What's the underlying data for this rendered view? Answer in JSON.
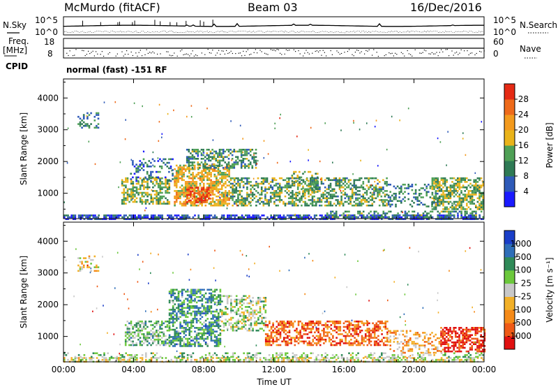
{
  "header": {
    "site": "McMurdo (fitACF)",
    "beam": "Beam 03",
    "date": "16/Dec/2016"
  },
  "strip_labels": {
    "nsky": "N.Sky",
    "nsearch": "N.Search",
    "freq_line1": "Freq.",
    "freq_line2": "[MHz]",
    "nave": "Nave",
    "cpid": "CPID",
    "cpid_value": "normal (fast) -151 RF",
    "noise_left_ticks": [
      "10^5",
      "10^0"
    ],
    "noise_right_ticks": [
      "10^5",
      "10^0"
    ],
    "freq_ticks": [
      "18",
      "8"
    ],
    "nave_ticks": [
      "60",
      "0"
    ]
  },
  "colors": {
    "power": [
      "#1a1aff",
      "#2e5ab8",
      "#2f7a55",
      "#4fa056",
      "#e9b31a",
      "#f39a1d",
      "#ee6a1a",
      "#e52a14"
    ],
    "velocity": [
      "#e01010",
      "#ef5a16",
      "#f58a18",
      "#f2b028",
      "#c8c8c8",
      "#6cc83c",
      "#2f8a58",
      "#2f6eb8",
      "#1a3ec8"
    ]
  },
  "chart_data": [
    {
      "type": "heatmap",
      "name": "power-panel",
      "xlabel": "",
      "ylabel": "Slant Range [km]",
      "xlim": [
        "00:00",
        "24:00"
      ],
      "ylim": [
        200,
        4600
      ],
      "y_ticks": [
        "1000",
        "2000",
        "3000",
        "4000"
      ],
      "x_ticks": [
        "00:00",
        "04:00",
        "08:00",
        "12:00",
        "16:00",
        "20:00",
        "00:00"
      ],
      "colorbar": {
        "label": "Power [dB]",
        "ticks": [
          "4",
          "8",
          "12",
          "16",
          "20",
          "24",
          "28"
        ],
        "range": [
          0,
          32
        ]
      },
      "regions": [
        {
          "t0": 0.0,
          "t1": 24.0,
          "r0": 200,
          "r1": 330,
          "density": 0.9,
          "level": 0.15
        },
        {
          "t0": 0.8,
          "t1": 2.0,
          "r0": 3050,
          "r1": 3550,
          "density": 0.5,
          "level": 0.3
        },
        {
          "t0": 3.3,
          "t1": 6.0,
          "r0": 650,
          "r1": 1500,
          "density": 0.75,
          "level": 0.45
        },
        {
          "t0": 3.8,
          "t1": 6.2,
          "r0": 1400,
          "r1": 2100,
          "density": 0.35,
          "level": 0.25
        },
        {
          "t0": 6.3,
          "t1": 9.5,
          "r0": 600,
          "r1": 1900,
          "density": 0.85,
          "level": 0.6
        },
        {
          "t0": 7.0,
          "t1": 8.4,
          "r0": 700,
          "r1": 1200,
          "density": 0.9,
          "level": 0.85
        },
        {
          "t0": 7.0,
          "t1": 11.0,
          "r0": 1800,
          "r1": 2400,
          "density": 0.7,
          "level": 0.35
        },
        {
          "t0": 9.5,
          "t1": 18.5,
          "r0": 600,
          "r1": 1500,
          "density": 0.65,
          "level": 0.4
        },
        {
          "t0": 13.0,
          "t1": 14.5,
          "r0": 900,
          "r1": 1700,
          "density": 0.4,
          "level": 0.45
        },
        {
          "t0": 18.5,
          "t1": 21.5,
          "r0": 600,
          "r1": 1300,
          "density": 0.45,
          "level": 0.3
        },
        {
          "t0": 21.0,
          "t1": 24.0,
          "r0": 500,
          "r1": 1500,
          "density": 0.8,
          "level": 0.45
        },
        {
          "t0": 15.0,
          "t1": 24.0,
          "r0": 230,
          "r1": 450,
          "density": 0.5,
          "level": 0.35
        }
      ]
    },
    {
      "type": "heatmap",
      "name": "velocity-panel",
      "xlabel": "Time UT",
      "ylabel": "Slant Range [km]",
      "xlim": [
        "00:00",
        "24:00"
      ],
      "ylim": [
        200,
        4600
      ],
      "y_ticks": [
        "1000",
        "2000",
        "3000",
        "4000"
      ],
      "x_ticks": [
        "00:00",
        "04:00",
        "08:00",
        "12:00",
        "16:00",
        "20:00",
        "00:00"
      ],
      "colorbar": {
        "label": "Velocity [m s⁻¹]",
        "ticks": [
          "1000",
          "500",
          "100",
          "25",
          "-25",
          "-100",
          "-500",
          "-1000"
        ],
        "range": [
          -1000,
          1000
        ]
      },
      "regions": [
        {
          "t0": 0.0,
          "t1": 24.0,
          "r0": 200,
          "r1": 350,
          "density": 0.8,
          "level": 0.5
        },
        {
          "t0": 0.8,
          "t1": 2.0,
          "r0": 3050,
          "r1": 3550,
          "density": 0.4,
          "level": 0.45
        },
        {
          "t0": 3.5,
          "t1": 6.0,
          "r0": 700,
          "r1": 1500,
          "density": 0.7,
          "level": 0.63
        },
        {
          "t0": 6.0,
          "t1": 9.0,
          "r0": 700,
          "r1": 2500,
          "density": 0.75,
          "level": 0.72
        },
        {
          "t0": 9.0,
          "t1": 11.5,
          "r0": 1200,
          "r1": 2300,
          "density": 0.6,
          "level": 0.55
        },
        {
          "t0": 11.5,
          "t1": 18.5,
          "r0": 700,
          "r1": 1500,
          "density": 0.7,
          "level": 0.2
        },
        {
          "t0": 18.5,
          "t1": 21.5,
          "r0": 500,
          "r1": 1200,
          "density": 0.4,
          "level": 0.35
        },
        {
          "t0": 21.5,
          "t1": 24.0,
          "r0": 500,
          "r1": 1300,
          "density": 0.8,
          "level": 0.08
        },
        {
          "t0": 0.0,
          "t1": 24.0,
          "r0": 350,
          "r1": 500,
          "density": 0.35,
          "level": 0.6
        }
      ]
    }
  ]
}
